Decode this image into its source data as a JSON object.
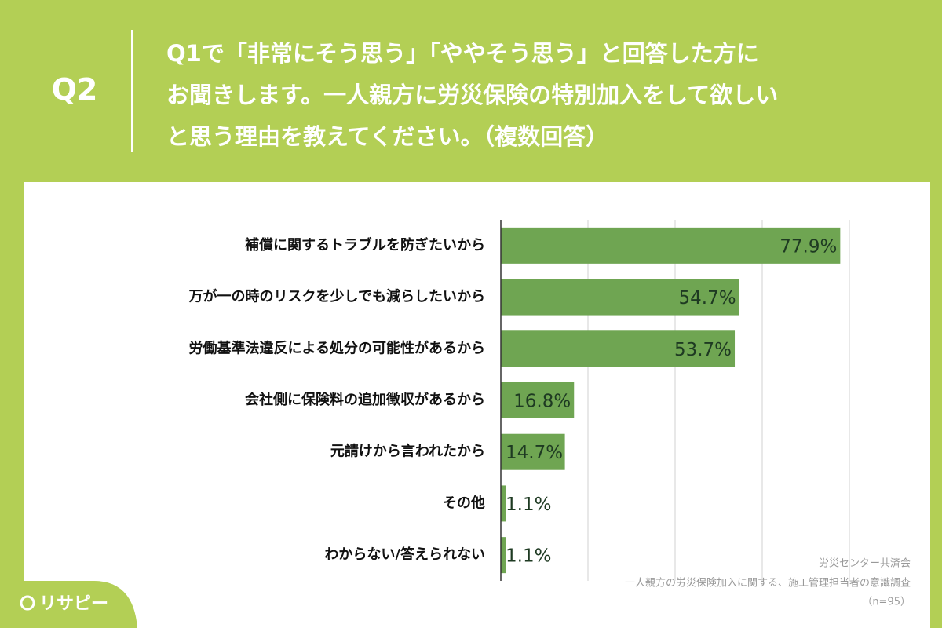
{
  "header": {
    "question": "Q2",
    "title_lines": [
      "Q1で「非常にそう思う」「ややそう思う」と回答した方に",
      "お聞きします。一人親方に労災保険の特別加入をして欲しい",
      "と思う理由を教えてください。（複数回答）"
    ]
  },
  "chart_data": {
    "type": "hbar",
    "categories": [
      "補償に関するトラブルを防ぎたいから",
      "万が一の時のリスクを少しでも減らしたいから",
      "労働基準法違反による処分の可能性があるから",
      "会社側に保険料の追加徴収があるから",
      "元請けから言われたから",
      "その他",
      "わからない/答えられない"
    ],
    "values": [
      77.9,
      54.7,
      53.7,
      16.8,
      14.7,
      1.1,
      1.1
    ],
    "value_labels": [
      "77.9%",
      "54.7%",
      "53.7%",
      "16.8%",
      "14.7%",
      "1.1%",
      "1.1%"
    ],
    "color": "#6fa552",
    "xlim": [
      0,
      80
    ],
    "xticks": [
      0,
      20,
      40,
      60,
      80
    ],
    "grid": true
  },
  "source": {
    "lines": [
      "労災センター共済会",
      "一人親方の労災保険加入に関する、施工管理担当者の意識調査",
      "（n=95）"
    ]
  },
  "logo": "リサピー"
}
